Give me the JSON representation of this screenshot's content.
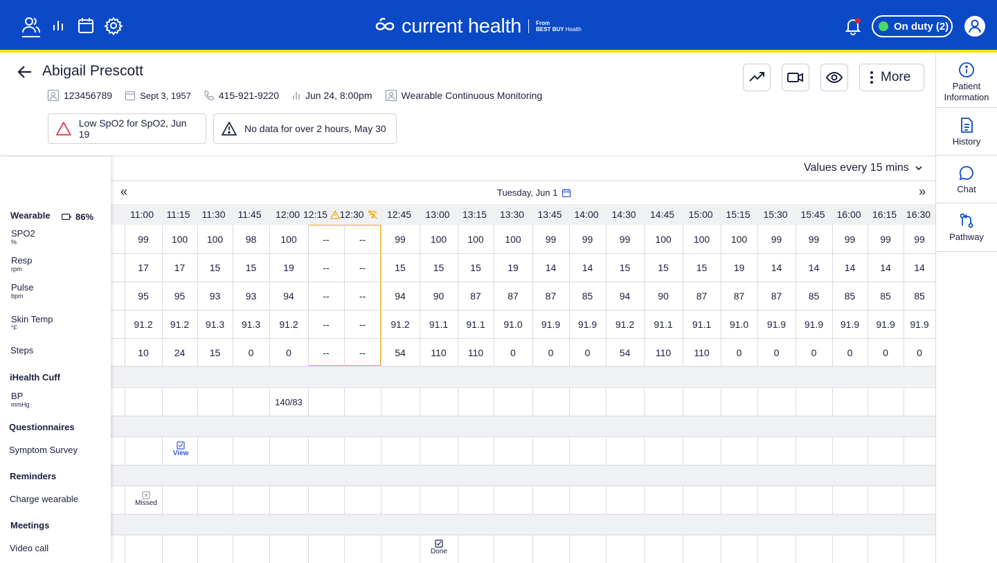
{
  "brand": {
    "name": "current health",
    "from_label": "From",
    "partner": "BEST BUY",
    "partner_suffix": "Health"
  },
  "topbar": {
    "on_duty_label": "On duty (2)",
    "nav_icons": [
      "patients-icon",
      "analytics-icon",
      "calendar-icon",
      "settings-icon"
    ],
    "colors": {
      "bar": "#0a49c6",
      "stripe": "#ffe000",
      "status_dot": "#4cd964",
      "notification_dot": "#e0202e"
    }
  },
  "patient": {
    "name": "Abigail Prescott",
    "id": "123456789",
    "dob": "Sept 3, 1957",
    "phone": "415-921-9220",
    "last_reading": "Jun 24, 8:00pm",
    "program": "Wearable Continuous Monitoring"
  },
  "alerts": [
    {
      "text": "Low SpO2 for SpO2, Jun 19",
      "severity": "high"
    },
    {
      "text": "No data for over 2 hours, May 30",
      "severity": "warning"
    }
  ],
  "actions": {
    "more_label": "More"
  },
  "right_panel": {
    "items": [
      {
        "label_line1": "Patient",
        "label_line2": "Information",
        "icon": "info-icon"
      },
      {
        "label_line1": "History",
        "label_line2": "",
        "icon": "document-icon"
      },
      {
        "label_line1": "Chat",
        "label_line2": "",
        "icon": "chat-icon"
      },
      {
        "label_line1": "Pathway",
        "label_line2": "",
        "icon": "pathway-icon"
      }
    ]
  },
  "grid": {
    "interval_label": "Values every 15 mins",
    "date_label": "Tuesday, Jun 1",
    "prev": "«",
    "next": "»",
    "times": [
      "11:00",
      "11:15",
      "11:30",
      "11:45",
      "12:00",
      "12:15",
      "12:30",
      "12:45",
      "13:00",
      "13:15",
      "13:30",
      "13:45",
      "14:00",
      "14:30",
      "14:45",
      "15:00",
      "15:15",
      "15:30",
      "15:45",
      "16:00",
      "16:15",
      "16:30"
    ],
    "wearable": {
      "group_label": "Wearable",
      "battery": "86%",
      "rows": [
        {
          "label": "SPO2",
          "unit": "%",
          "values": [
            "99",
            "100",
            "100",
            "98",
            "100",
            "--",
            "--",
            "99",
            "100",
            "100",
            "100",
            "99",
            "99",
            "99",
            "100",
            "100",
            "100",
            "99",
            "99",
            "99",
            "99",
            "99"
          ]
        },
        {
          "label": "Resp",
          "unit": "rpm",
          "values": [
            "17",
            "17",
            "15",
            "15",
            "19",
            "--",
            "--",
            "15",
            "15",
            "15",
            "19",
            "14",
            "14",
            "15",
            "15",
            "15",
            "19",
            "14",
            "14",
            "14",
            "14",
            "14"
          ]
        },
        {
          "label": "Pulse",
          "unit": "bpm",
          "values": [
            "95",
            "95",
            "93",
            "93",
            "94",
            "--",
            "--",
            "94",
            "90",
            "87",
            "87",
            "87",
            "85",
            "94",
            "90",
            "87",
            "87",
            "87",
            "85",
            "85",
            "85",
            "85"
          ]
        },
        {
          "label": "Skin Temp",
          "unit": "°F",
          "values": [
            "91.2",
            "91.2",
            "91.3",
            "91.3",
            "91.2",
            "--",
            "--",
            "91.2",
            "91.1",
            "91.1",
            "91.0",
            "91.9",
            "91.9",
            "91.2",
            "91.1",
            "91.1",
            "91.0",
            "91.9",
            "91.9",
            "91.9",
            "91.9",
            "91.9"
          ]
        },
        {
          "label": "Steps",
          "unit": "",
          "values": [
            "10",
            "24",
            "15",
            "0",
            "0",
            "--",
            "--",
            "54",
            "110",
            "110",
            "0",
            "0",
            "0",
            "54",
            "110",
            "110",
            "0",
            "0",
            "0",
            "0",
            "0",
            "0"
          ]
        }
      ]
    },
    "cuff": {
      "group_label": "iHealth Cuff",
      "row_label": "BP",
      "unit": "mmHg",
      "reading": "140/83"
    },
    "questionnaires": {
      "group_label": "Questionnaires",
      "row_label": "Symptom Survey",
      "action": "View"
    },
    "reminders": {
      "group_label": "Reminders",
      "row_label": "Charge wearable",
      "status": "Missed"
    },
    "meetings": {
      "group_label": "Meetings",
      "row_label": "Video call",
      "status": "Done"
    }
  }
}
